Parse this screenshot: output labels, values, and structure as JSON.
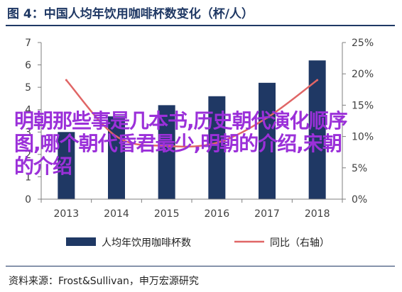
{
  "figure": {
    "title": "图 4：中国人均年饮用咖啡杯数变化（杯/人）",
    "source": "资料来源：Frost&Sullivan，申万宏源研究",
    "overlay_text": "明朝那些事是几本书,历史朝代演化顺序图,哪个朝代昏君最少,明朝的介绍,宋朝的介绍"
  },
  "colors": {
    "title": "#1f3864",
    "bar": "#1f3864",
    "line": "#e06666",
    "overlay": "#9b30d9",
    "axis": "#7f7f7f"
  },
  "chart_data": {
    "type": "bar",
    "categories": [
      "2013",
      "2014",
      "2015",
      "2016",
      "2017",
      "2018"
    ],
    "series": [
      {
        "name": "人均年饮用咖啡杯数",
        "type": "bar",
        "axis": "left",
        "values": [
          3.0,
          3.7,
          4.2,
          4.6,
          5.2,
          6.2
        ]
      },
      {
        "name": "同比（右轴）",
        "type": "line",
        "axis": "right",
        "values": [
          0.19,
          0.1,
          0.085,
          0.09,
          0.13,
          0.19
        ]
      }
    ],
    "ylim": [
      0,
      7
    ],
    "y_ticks": [
      "0",
      "1",
      "2",
      "3",
      "4",
      "5",
      "6",
      "7"
    ],
    "y2lim": [
      0,
      0.25
    ],
    "y2_ticks": [
      "0%",
      "5%",
      "10%",
      "15%",
      "20%",
      "25%"
    ],
    "legend_position": "bottom",
    "grid": false
  }
}
